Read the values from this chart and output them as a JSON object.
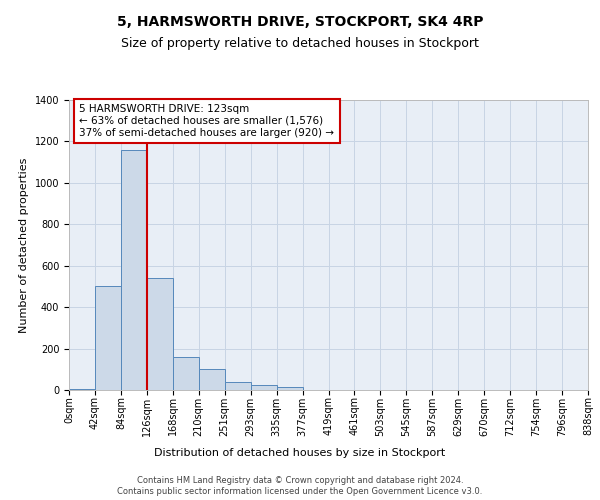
{
  "title1": "5, HARMSWORTH DRIVE, STOCKPORT, SK4 4RP",
  "title2": "Size of property relative to detached houses in Stockport",
  "xlabel": "Distribution of detached houses by size in Stockport",
  "ylabel": "Number of detached properties",
  "footer1": "Contains HM Land Registry data © Crown copyright and database right 2024.",
  "footer2": "Contains public sector information licensed under the Open Government Licence v3.0.",
  "bin_labels": [
    "0sqm",
    "42sqm",
    "84sqm",
    "126sqm",
    "168sqm",
    "210sqm",
    "251sqm",
    "293sqm",
    "335sqm",
    "377sqm",
    "419sqm",
    "461sqm",
    "503sqm",
    "545sqm",
    "587sqm",
    "629sqm",
    "670sqm",
    "712sqm",
    "754sqm",
    "796sqm",
    "838sqm"
  ],
  "bar_values": [
    5,
    500,
    1160,
    540,
    160,
    100,
    40,
    25,
    13,
    0,
    0,
    0,
    0,
    0,
    0,
    0,
    0,
    0,
    0,
    0
  ],
  "bar_color": "#ccd9e8",
  "bar_edge_color": "#5588bb",
  "grid_color": "#c8d4e4",
  "plot_bg_color": "#e8eef6",
  "ylim": [
    0,
    1400
  ],
  "yticks": [
    0,
    200,
    400,
    600,
    800,
    1000,
    1200,
    1400
  ],
  "property_bin_index": 3,
  "annotation_title": "5 HARMSWORTH DRIVE: 123sqm",
  "annotation_line1": "← 63% of detached houses are smaller (1,576)",
  "annotation_line2": "37% of semi-detached houses are larger (920) →",
  "vline_color": "#cc0000",
  "annotation_box_color": "#cc0000",
  "title1_fontsize": 10,
  "title2_fontsize": 9,
  "annotation_fontsize": 7.5,
  "ylabel_fontsize": 8,
  "xlabel_fontsize": 8,
  "tick_fontsize": 7,
  "footer_fontsize": 6
}
